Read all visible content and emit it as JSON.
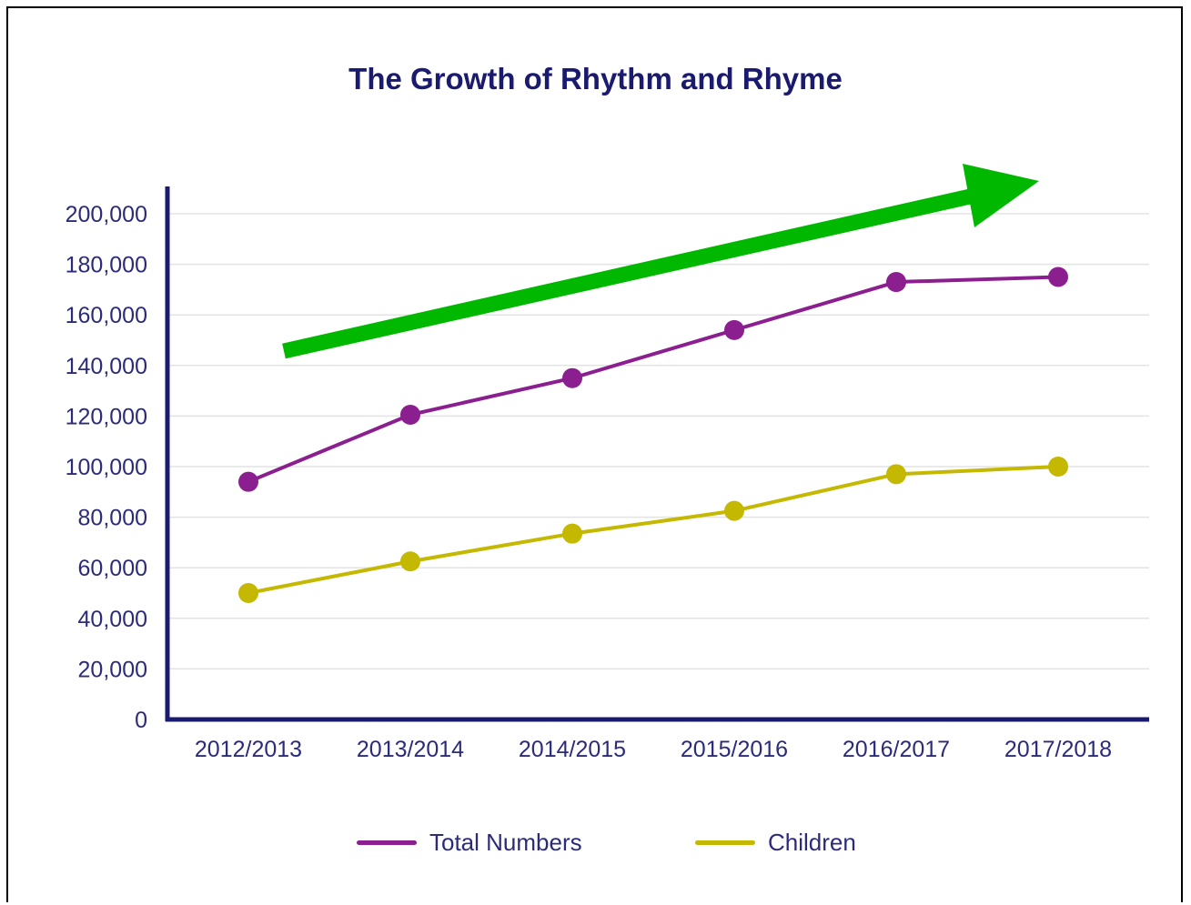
{
  "chart_data": {
    "type": "line",
    "title": "The Growth of Rhythm and Rhyme",
    "xlabel": "",
    "ylabel": "",
    "categories": [
      "2012/2013",
      "2013/2014",
      "2014/2015",
      "2015/2016",
      "2016/2017",
      "2017/2018"
    ],
    "ylim": [
      0,
      200000
    ],
    "yticks": [
      0,
      20000,
      40000,
      60000,
      80000,
      100000,
      120000,
      140000,
      160000,
      180000,
      200000
    ],
    "ytick_labels": [
      "0",
      "20,000",
      "40,000",
      "60,000",
      "80,000",
      "100,000",
      "120,000",
      "140,000",
      "160,000",
      "180,000",
      "200,000"
    ],
    "grid": "horizontal",
    "legend_position": "bottom",
    "series": [
      {
        "name": "Total Numbers",
        "color": "#8b1f8f",
        "values": [
          94000,
          120500,
          135000,
          154000,
          173000,
          175000
        ]
      },
      {
        "name": "Children",
        "color": "#c4b800",
        "values": [
          50000,
          62500,
          73500,
          82500,
          97000,
          100000
        ]
      }
    ],
    "annotation": {
      "shape": "arrow",
      "color": "#00b800",
      "meaning": "growth trend"
    }
  }
}
